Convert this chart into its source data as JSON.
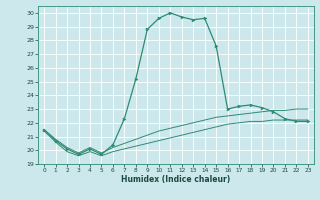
{
  "xlabel": "Humidex (Indice chaleur)",
  "background_color": "#cce8ec",
  "grid_color": "#ffffff",
  "line_color": "#2e8b72",
  "xlim": [
    -0.5,
    23.5
  ],
  "ylim": [
    19,
    30.5
  ],
  "yticks": [
    19,
    20,
    21,
    22,
    23,
    24,
    25,
    26,
    27,
    28,
    29,
    30
  ],
  "xticks": [
    0,
    1,
    2,
    3,
    4,
    5,
    6,
    7,
    8,
    9,
    10,
    11,
    12,
    13,
    14,
    15,
    16,
    17,
    18,
    19,
    20,
    21,
    22,
    23
  ],
  "main_y": [
    21.5,
    20.7,
    20.1,
    19.7,
    20.1,
    19.7,
    20.4,
    22.3,
    25.2,
    28.8,
    29.6,
    30.0,
    29.7,
    29.5,
    29.6,
    27.6,
    23.0,
    23.2,
    23.3,
    23.1,
    22.8,
    22.3,
    22.1,
    22.1
  ],
  "line1_y": [
    21.4,
    20.6,
    19.9,
    19.6,
    19.9,
    19.6,
    19.9,
    20.1,
    20.3,
    20.5,
    20.7,
    20.9,
    21.1,
    21.3,
    21.5,
    21.7,
    21.9,
    22.0,
    22.1,
    22.1,
    22.2,
    22.2,
    22.2,
    22.2
  ],
  "line2_y": [
    21.5,
    20.8,
    20.2,
    19.8,
    20.2,
    19.8,
    20.2,
    20.5,
    20.8,
    21.1,
    21.4,
    21.6,
    21.8,
    22.0,
    22.2,
    22.4,
    22.5,
    22.6,
    22.7,
    22.8,
    22.9,
    22.9,
    23.0,
    23.0
  ]
}
